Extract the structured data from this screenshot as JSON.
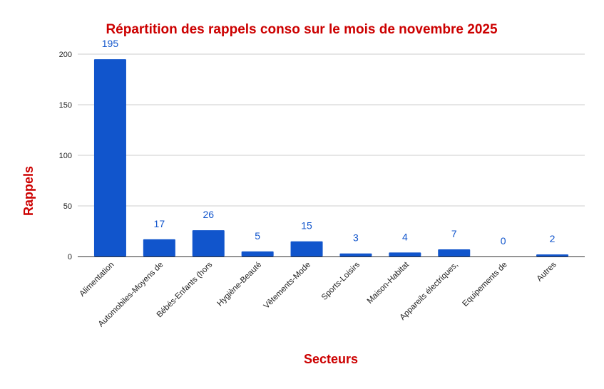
{
  "chart_data": {
    "type": "bar",
    "title": "Répartition des rappels conso sur le mois de novembre 2025",
    "xlabel": "Secteurs",
    "ylabel": "Rappels",
    "categories": [
      "Alimentation",
      "Automobiles-Moyens de",
      "Bébés-Enfants (hors",
      "Hygiène-Beauté",
      "Vêtements-Mode",
      "Sports-Loisirs",
      "Maison-Habitat",
      "Appareils électriques,",
      "Equipements de",
      "Autres"
    ],
    "values": [
      195,
      17,
      26,
      5,
      15,
      3,
      4,
      7,
      0,
      2
    ],
    "ylim": [
      0,
      200
    ],
    "yticks": [
      0,
      50,
      100,
      150,
      200
    ],
    "grid": true,
    "legend": "none",
    "colors": {
      "bar": "#1155cc",
      "title": "#cc0000",
      "data_label": "#1155cc",
      "grid": "#cccccc"
    }
  }
}
